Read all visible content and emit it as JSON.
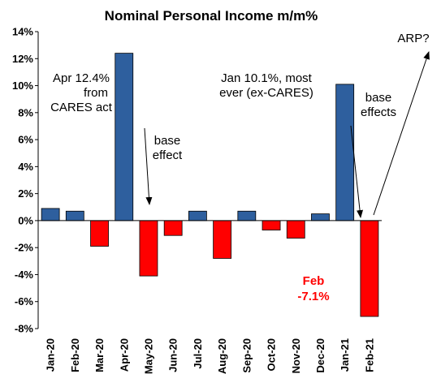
{
  "chart_data": {
    "type": "bar",
    "title": "Nominal Personal Income m/m%",
    "xlabel": "",
    "ylabel": "",
    "ylim": [
      -8,
      14
    ],
    "ytick_step": 2,
    "ytick_suffix": "%",
    "grid": false,
    "categories": [
      "Jan-20",
      "Feb-20",
      "Mar-20",
      "Apr-20",
      "May-20",
      "Jun-20",
      "Jul-20",
      "Aug-20",
      "Sep-20",
      "Oct-20",
      "Nov-20",
      "Dec-20",
      "Jan-21",
      "Feb-21"
    ],
    "values": [
      0.9,
      0.7,
      -1.9,
      12.4,
      -4.1,
      -1.1,
      0.7,
      -2.8,
      0.7,
      -0.7,
      -1.3,
      0.5,
      10.1,
      -7.1
    ],
    "colors": {
      "positive": "#2e5f9e",
      "negative": "#ff0000"
    },
    "annotations": {
      "apr": [
        "Apr 12.4%",
        "from",
        "CARES act"
      ],
      "base_effect": [
        "base",
        "effect"
      ],
      "jan": [
        "Jan 10.1%, most",
        "ever (ex-CARES)"
      ],
      "base_effects": [
        "base",
        "effects"
      ],
      "arp": "ARP?",
      "feb": [
        "Feb",
        "-7.1%"
      ]
    }
  }
}
